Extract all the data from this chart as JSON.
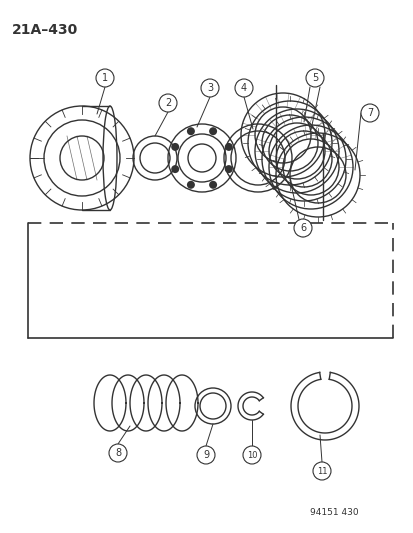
{
  "title": "21A–430",
  "footer": "94151 430",
  "bg_color": "#ffffff",
  "line_color": "#333333",
  "figsize": [
    4.14,
    5.33
  ],
  "dpi": 100,
  "xlim": [
    0,
    414
  ],
  "ylim": [
    0,
    533
  ]
}
